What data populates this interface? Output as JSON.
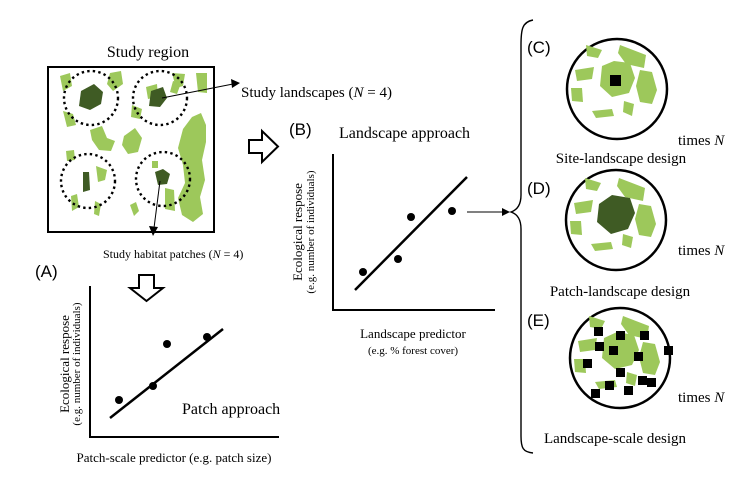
{
  "study_region": {
    "title": "Study region",
    "landscapes_label": "Study landscapes (",
    "landscapes_n": "N",
    "landscapes_count": " = 4)",
    "patches_label": "Study habitat patches (",
    "patches_n": "N",
    "patches_count": " = 4)"
  },
  "panel_a": {
    "letter": "(A)",
    "approach": "Patch approach",
    "ylabel_1": "Ecological respose",
    "ylabel_2": "(e.g. number of individuals)",
    "xlabel": "Patch-scale predictor (e.g. patch size)"
  },
  "panel_b": {
    "letter": "(B)",
    "approach": "Landscape approach",
    "ylabel_1": "Ecological respose",
    "ylabel_2": "(e.g. number of individuals)",
    "xlabel_1": "Landscape predictor",
    "xlabel_2": "(e.g. % forest cover)"
  },
  "panel_c": {
    "letter": "(C)",
    "design": "Site-landscape design",
    "times": "times ",
    "n": "N"
  },
  "panel_d": {
    "letter": "(D)",
    "design": "Patch-landscape design",
    "times": "times ",
    "n": "N"
  },
  "panel_e": {
    "letter": "(E)",
    "design": "Landscape-scale design",
    "times": "times ",
    "n": "N"
  },
  "colors": {
    "light_green": "#9dc85b",
    "dark_green": "#3f5b24",
    "ink": "#000000"
  }
}
